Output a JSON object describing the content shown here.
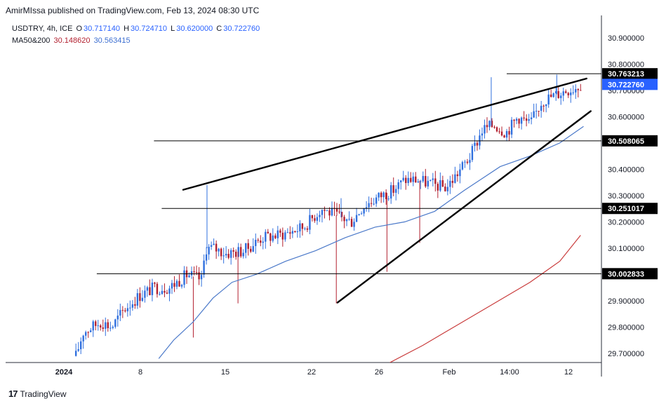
{
  "header": {
    "publisher": "AmirMIssa published on TradingView.com, Feb 13, 2024 08:30 UTC"
  },
  "legend": {
    "symbol": "USDTRY, 4h, ICE",
    "open_label": "O",
    "open": "30.717140",
    "high_label": "H",
    "high": "30.724710",
    "low_label": "L",
    "low": "30.620000",
    "close_label": "C",
    "close": "30.722760",
    "ma_label": "MA50&200",
    "ma200": "30.148620",
    "ma50": "30.563415"
  },
  "footer": {
    "logo_mark": "17",
    "brand": "TradingView"
  },
  "colors": {
    "up": "#2f6fde",
    "down": "#b2202f",
    "ma50": "#4b79c9",
    "ma200": "#c93b3b",
    "line": "#000000",
    "grid": "#c8c8c8"
  },
  "chart_data": {
    "type": "candlestick",
    "symbol": "USDTRY",
    "timeframe": "4h",
    "x_tick_labels": [
      "2024",
      "8",
      "15",
      "22",
      "26",
      "Feb",
      "14:00",
      "12"
    ],
    "ylim": [
      29.665,
      30.985
    ],
    "y_tick_labels": [
      "30.900000",
      "30.800000",
      "30.700000",
      "30.600000",
      "30.400000",
      "30.300000",
      "30.200000",
      "30.100000",
      "29.900000",
      "29.800000",
      "29.700000"
    ],
    "y_tick_values": [
      30.9,
      30.8,
      30.7,
      30.6,
      30.4,
      30.3,
      30.2,
      30.1,
      29.9,
      29.8,
      29.7
    ],
    "horizontal_levels": [
      {
        "value": 30.763213,
        "label": "30.763213",
        "x_start": 0.841
      },
      {
        "value": 30.508065,
        "label": "30.508065",
        "x_start": 0.249
      },
      {
        "value": 30.251017,
        "label": "30.251017",
        "x_start": 0.262
      },
      {
        "value": 30.002833,
        "label": "30.002833",
        "x_start": 0.153
      }
    ],
    "last_price": {
      "value": 30.72276,
      "label": "30.722760"
    },
    "trendlines": [
      {
        "name": "wedge-upper",
        "x1": 0.298,
        "y1": 30.322,
        "x2": 0.975,
        "y2": 30.745
      },
      {
        "name": "wedge-lower",
        "x1": 0.557,
        "y1": 29.893,
        "x2": 0.982,
        "y2": 30.621
      }
    ],
    "ma50": [
      [
        0.257,
        29.68
      ],
      [
        0.282,
        29.75
      ],
      [
        0.315,
        29.82
      ],
      [
        0.348,
        29.91
      ],
      [
        0.38,
        29.97
      ],
      [
        0.42,
        30.0
      ],
      [
        0.47,
        30.05
      ],
      [
        0.52,
        30.09
      ],
      [
        0.57,
        30.14
      ],
      [
        0.62,
        30.18
      ],
      [
        0.67,
        30.2
      ],
      [
        0.72,
        30.24
      ],
      [
        0.77,
        30.32
      ],
      [
        0.83,
        30.41
      ],
      [
        0.88,
        30.45
      ],
      [
        0.93,
        30.5
      ],
      [
        0.97,
        30.563
      ]
    ],
    "ma200": [
      [
        0.645,
        29.665
      ],
      [
        0.7,
        29.73
      ],
      [
        0.76,
        29.81
      ],
      [
        0.82,
        29.89
      ],
      [
        0.88,
        29.97
      ],
      [
        0.93,
        30.05
      ],
      [
        0.965,
        30.149
      ]
    ],
    "candles": {
      "anchors": [
        [
          0.118,
          29.69
        ],
        [
          0.13,
          29.78
        ],
        [
          0.145,
          29.8
        ],
        [
          0.16,
          29.82
        ],
        [
          0.178,
          29.8
        ],
        [
          0.2,
          29.87
        ],
        [
          0.225,
          29.92
        ],
        [
          0.25,
          29.95
        ],
        [
          0.275,
          29.95
        ],
        [
          0.305,
          30.0
        ],
        [
          0.33,
          29.98
        ],
        [
          0.335,
          30.1
        ],
        [
          0.35,
          30.1
        ],
        [
          0.37,
          30.08
        ],
        [
          0.4,
          30.09
        ],
        [
          0.43,
          30.14
        ],
        [
          0.46,
          30.15
        ],
        [
          0.5,
          30.18
        ],
        [
          0.53,
          30.25
        ],
        [
          0.56,
          30.22
        ],
        [
          0.58,
          30.2
        ],
        [
          0.6,
          30.26
        ],
        [
          0.63,
          30.3
        ],
        [
          0.65,
          30.32
        ],
        [
          0.67,
          30.36
        ],
        [
          0.69,
          30.36
        ],
        [
          0.72,
          30.34
        ],
        [
          0.74,
          30.33
        ],
        [
          0.76,
          30.39
        ],
        [
          0.78,
          30.45
        ],
        [
          0.8,
          30.55
        ],
        [
          0.82,
          30.57
        ],
        [
          0.84,
          30.54
        ],
        [
          0.86,
          30.6
        ],
        [
          0.88,
          30.57
        ],
        [
          0.9,
          30.66
        ],
        [
          0.92,
          30.68
        ],
        [
          0.94,
          30.7
        ],
        [
          0.955,
          30.71
        ],
        [
          0.965,
          30.7229
        ]
      ],
      "spikes": [
        [
          0.338,
          30.34
        ],
        [
          0.315,
          29.76
        ],
        [
          0.39,
          29.89
        ],
        [
          0.555,
          29.89
        ],
        [
          0.563,
          30.29
        ],
        [
          0.64,
          30.01
        ],
        [
          0.695,
          30.12
        ],
        [
          0.815,
          30.75
        ],
        [
          0.925,
          30.76
        ]
      ]
    }
  }
}
